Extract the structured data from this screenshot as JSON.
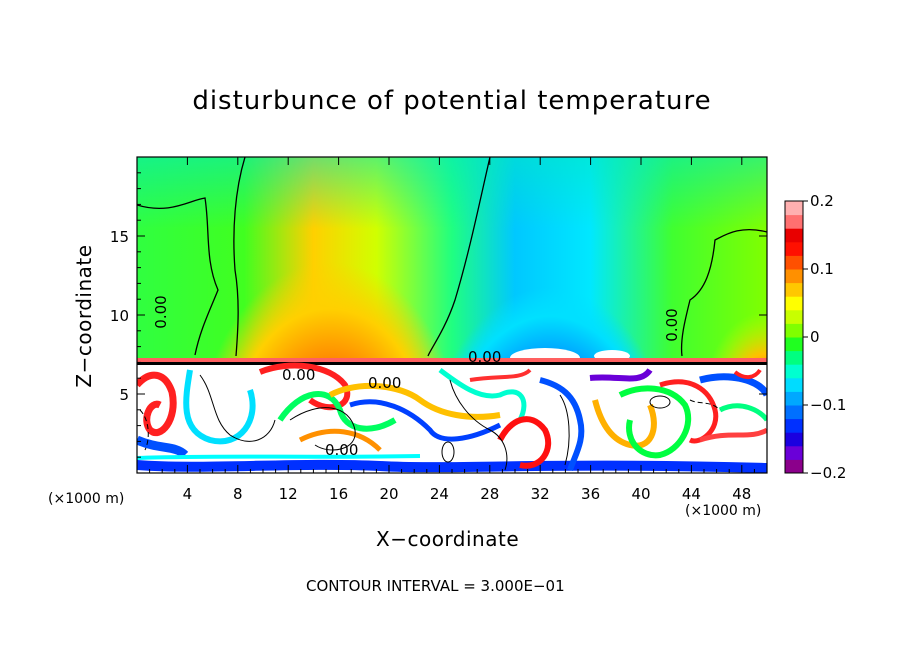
{
  "chart_data": {
    "type": "heatmap",
    "title": "disturbunce of potential temperature",
    "xlabel": "X−coordinate",
    "ylabel": "Z−coordinate",
    "x_unit": "(×1000 m)",
    "y_unit": "(×1000 m)",
    "xlim": [
      0,
      50
    ],
    "ylim": [
      0,
      20
    ],
    "x_ticks": [
      "4",
      "8",
      "12",
      "16",
      "20",
      "24",
      "28",
      "32",
      "36",
      "40",
      "44",
      "48"
    ],
    "y_ticks": [
      "5",
      "10",
      "15"
    ],
    "colorbar": {
      "ticks": [
        "0.2",
        "0.1",
        "0",
        "−0.1",
        "−0.2"
      ],
      "range": [
        -0.2,
        0.2
      ],
      "colors": [
        "#8b008b",
        "#6a00d8",
        "#1a00e0",
        "#0030ff",
        "#0070ff",
        "#00a8ff",
        "#00dcff",
        "#00ffd0",
        "#00ff80",
        "#20ff20",
        "#80ff00",
        "#c8ff00",
        "#ffff00",
        "#ffc800",
        "#ff9000",
        "#ff5000",
        "#ff1000",
        "#e80000",
        "#ff7070",
        "#ffb0b0"
      ]
    },
    "contour_labels": [
      "0.00",
      "0.00",
      "0.00",
      "0.00",
      "0.00",
      "0.00"
    ],
    "contour_interval": "CONTOUR INTERVAL = 3.000E−01"
  }
}
